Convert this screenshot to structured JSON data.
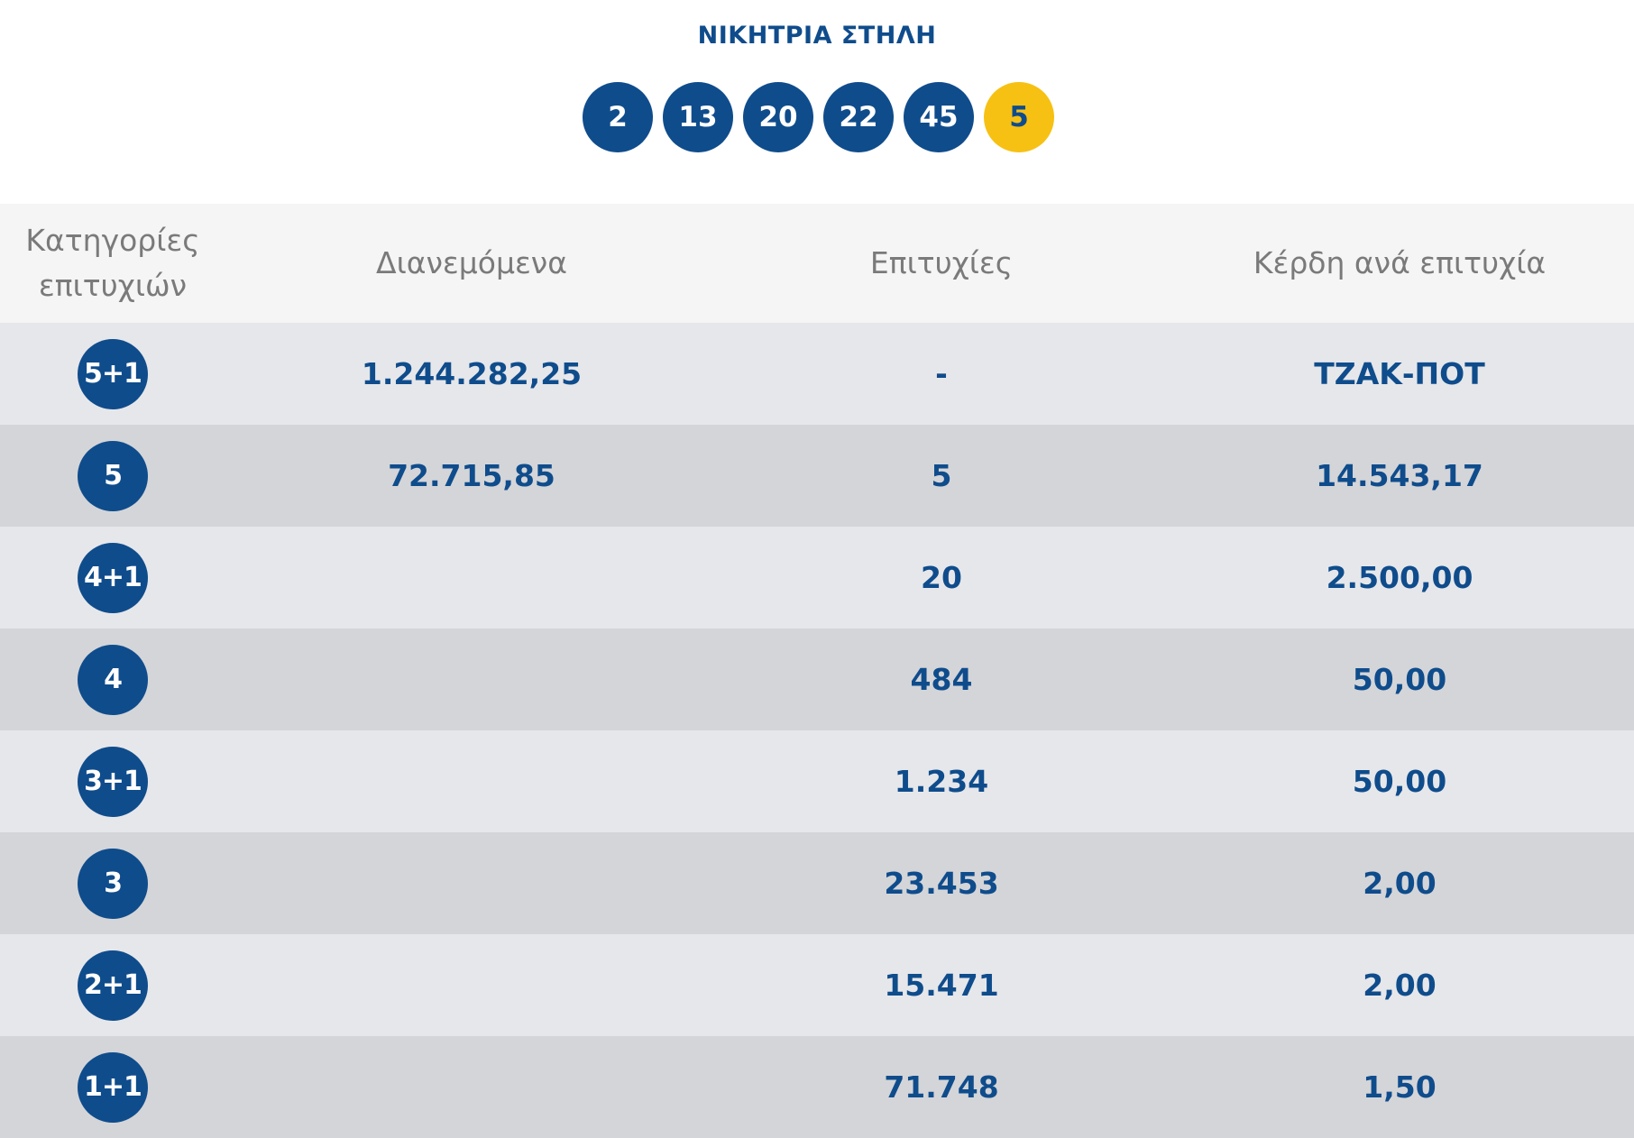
{
  "winning": {
    "title": "ΝΙΚΗΤΡΙΑ ΣΤΗΛΗ",
    "numbers": [
      "2",
      "13",
      "20",
      "22",
      "45"
    ],
    "joker": "5",
    "colors": {
      "ball": "#0f4c8c",
      "joker": "#f7c113"
    }
  },
  "table": {
    "headers": {
      "category_line1": "Κατηγορίες",
      "category_line2": "επιτυχιών",
      "distributed": "Διανεμόμενα",
      "winners": "Επιτυχίες",
      "prize": "Κέρδη ανά επιτυχία"
    },
    "rows": [
      {
        "category": "5+1",
        "distributed": "1.244.282,25",
        "winners": "-",
        "prize": "ΤΖΑΚ-ΠΟΤ"
      },
      {
        "category": "5",
        "distributed": "72.715,85",
        "winners": "5",
        "prize": "14.543,17"
      },
      {
        "category": "4+1",
        "distributed": "",
        "winners": "20",
        "prize": "2.500,00"
      },
      {
        "category": "4",
        "distributed": "",
        "winners": "484",
        "prize": "50,00"
      },
      {
        "category": "3+1",
        "distributed": "",
        "winners": "1.234",
        "prize": "50,00"
      },
      {
        "category": "3",
        "distributed": "",
        "winners": "23.453",
        "prize": "2,00"
      },
      {
        "category": "2+1",
        "distributed": "",
        "winners": "15.471",
        "prize": "2,00"
      },
      {
        "category": "1+1",
        "distributed": "",
        "winners": "71.748",
        "prize": "1,50"
      }
    ]
  }
}
